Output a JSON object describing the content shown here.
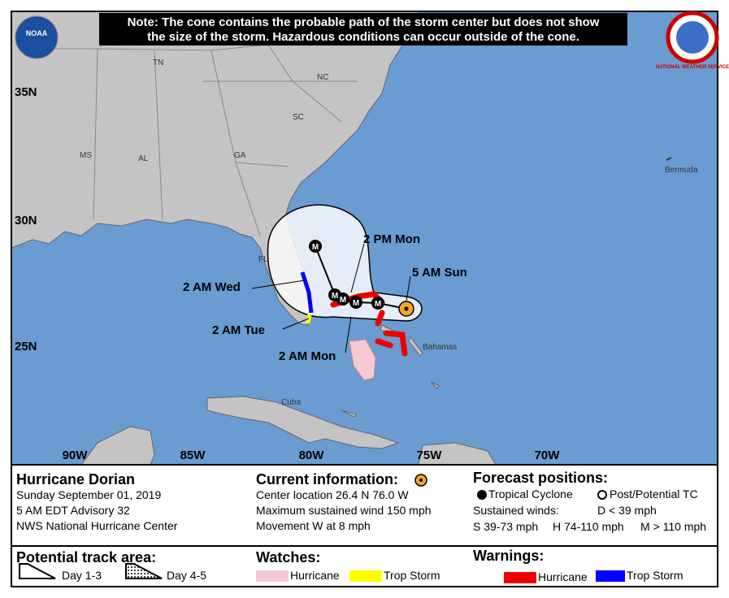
{
  "note": [
    "Note: The cone contains the probable path of the storm center but does not show",
    "the size of the storm. Hazardous conditions can occur outside of the cone."
  ],
  "logos": {
    "noaa": "NOAA",
    "nws": "NATIONAL WEATHER SERVICE"
  },
  "map": {
    "lat_labels": [
      "35N",
      "30N",
      "25N"
    ],
    "lon_labels": [
      "90W",
      "85W",
      "80W",
      "75W",
      "70W"
    ],
    "regions": [
      "TN",
      "NC",
      "SC",
      "MS",
      "AL",
      "GA",
      "FL",
      "Bermuda",
      "Bahamas",
      "Cuba"
    ],
    "time_labels": [
      "2 PM Mon",
      "5 AM Sun",
      "2 AM Wed",
      "2 AM Tue",
      "2 AM Mon"
    ],
    "markers": [
      "M",
      "M",
      "M",
      "M",
      "M"
    ]
  },
  "legend": {
    "storm": [
      "Hurricane Dorian",
      "Sunday September 01, 2019",
      "5 AM EDT Advisory 32",
      "NWS National Hurricane Center"
    ],
    "current": {
      "title": "Current information:",
      "lines": [
        "Center location 26.4 N 76.0 W",
        "Maximum sustained wind 150 mph",
        "Movement W at 8 mph"
      ]
    },
    "forecast": {
      "title": "Forecast positions:",
      "tropical": "Tropical Cyclone",
      "post": "Post/Potential TC",
      "winds": "Sustained winds:",
      "d": "D < 39 mph",
      "s": "S 39-73 mph",
      "h": "H 74-110 mph",
      "m": "M > 110 mph"
    },
    "track": {
      "title": "Potential track area:",
      "day13": "Day 1-3",
      "day45": "Day 4-5"
    },
    "watches": {
      "title": "Watches:",
      "hurricane": "Hurricane",
      "trop": "Trop Storm"
    },
    "warnings": {
      "title": "Warnings:",
      "hurricane": "Hurricane",
      "trop": "Trop Storm"
    }
  }
}
